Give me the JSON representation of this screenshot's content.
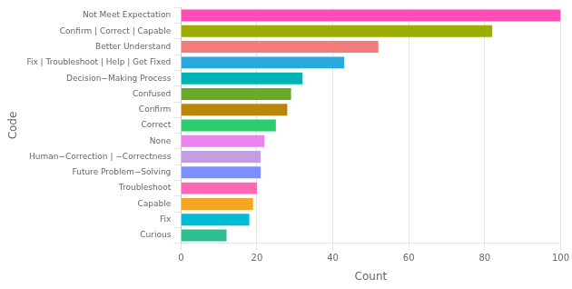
{
  "chart_data": {
    "type": "bar",
    "orientation": "horizontal",
    "categories": [
      "Curious",
      "Fix",
      "Capable",
      "Troubleshoot",
      "Future Problem−Solving",
      "Human−Correction | −Correctness",
      "None",
      "Correct",
      "Confirm",
      "Confused",
      "Decision−Making Process",
      "Fix | Troubleshoot | Help | Get Fixed",
      "Better Understand",
      "Confirm | Correct | Capable",
      "Not Meet Expectation"
    ],
    "values": [
      12,
      18,
      19,
      20,
      21,
      21,
      22,
      25,
      28,
      29,
      32,
      43,
      52,
      82,
      100
    ],
    "colors": [
      "#2dbd8e",
      "#00bcd4",
      "#f5a623",
      "#ff69b4",
      "#7b8fff",
      "#c49fdd",
      "#ee82ee",
      "#2ecc71",
      "#b8860b",
      "#6aaa2a",
      "#00b4b4",
      "#29a8e0",
      "#f47c7c",
      "#9aad00",
      "#ff4db8"
    ],
    "xlabel": "Count",
    "ylabel": "Code",
    "xlim": [
      0,
      100
    ],
    "xticks": [
      0,
      20,
      40,
      60,
      80,
      100
    ],
    "grid": true
  }
}
